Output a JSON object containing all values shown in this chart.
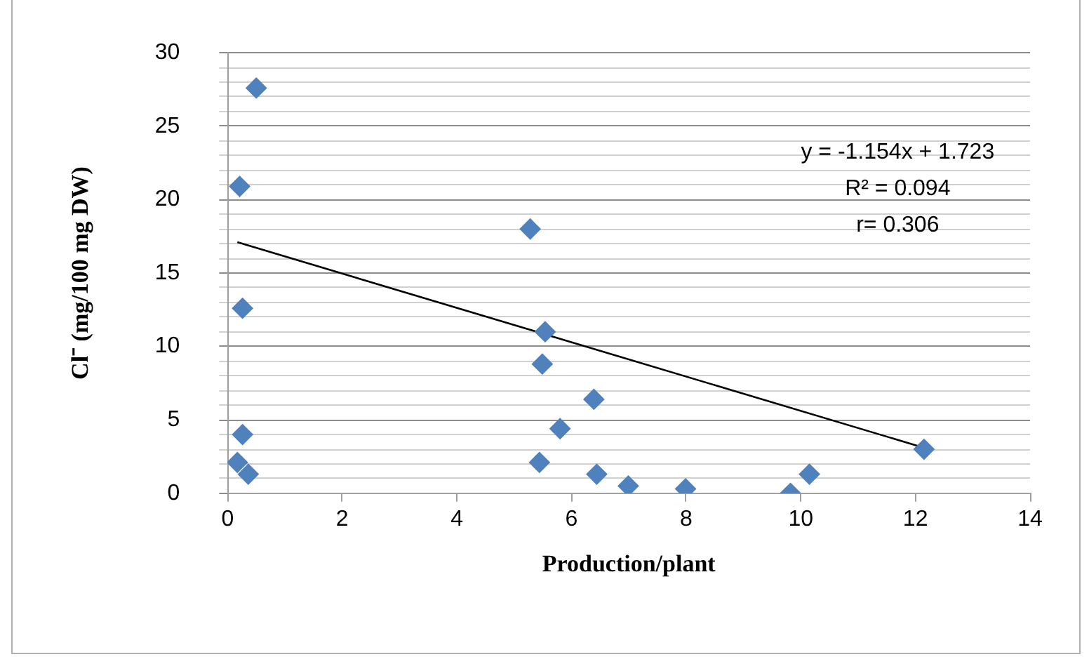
{
  "chart_data": {
    "type": "scatter",
    "xlabel": "Production/plant",
    "ylabel": "Cl⁻ (mg/100 mg DW)",
    "annotations": [
      "y = -1.154x + 1.723",
      "R² = 0.094",
      "r= 0.306"
    ],
    "series": [
      {
        "color": "#4f81bd",
        "marker": "diamond",
        "x": [
          0.5,
          0.21,
          0.26,
          0.26,
          0.17,
          0.36,
          5.28,
          5.54,
          5.49,
          6.39,
          5.8,
          5.44,
          6.44,
          6.99,
          7.99,
          9.82,
          10.15,
          12.15
        ],
        "values": [
          27.6,
          20.9,
          12.6,
          4.0,
          2.1,
          1.3,
          18.0,
          11.0,
          8.8,
          6.4,
          4.4,
          2.1,
          1.3,
          0.5,
          0.3,
          0.0,
          1.3,
          3.0
        ]
      },
      {
        "type": "line",
        "color": "#000000",
        "marker": "none",
        "x": [
          0.17,
          12.15
        ],
        "values": [
          17.1,
          3.1
        ]
      }
    ],
    "xlim": [
      0,
      14
    ],
    "xticks": [
      0,
      2,
      4,
      6,
      8,
      10,
      12,
      14
    ],
    "ylim": [
      0,
      30
    ],
    "yticks": [
      0,
      {
        "value": 1,
        "label": null
      },
      {
        "value": 2,
        "label": null
      },
      {
        "value": 3,
        "label": null
      },
      {
        "value": 4,
        "label": null
      },
      5,
      {
        "value": 6,
        "label": null
      },
      {
        "value": 7,
        "label": null
      },
      {
        "value": 8,
        "label": null
      },
      {
        "value": 9,
        "label": null
      },
      10,
      {
        "value": 11,
        "label": null
      },
      {
        "value": 12,
        "label": null
      },
      {
        "value": 13,
        "label": null
      },
      {
        "value": 14,
        "label": null
      },
      15,
      {
        "value": 16,
        "label": null
      },
      {
        "value": 17,
        "label": null
      },
      {
        "value": 18,
        "label": null
      },
      {
        "value": 19,
        "label": null
      },
      20,
      {
        "value": 21,
        "label": null
      },
      {
        "value": 22,
        "label": null
      },
      {
        "value": 23,
        "label": null
      },
      {
        "value": 24,
        "label": null
      },
      25,
      {
        "value": 26,
        "label": null
      },
      {
        "value": 27,
        "label": null
      },
      {
        "value": 28,
        "label": null
      },
      {
        "value": 29,
        "label": null
      },
      30
    ],
    "grid": "y",
    "legend": false
  }
}
